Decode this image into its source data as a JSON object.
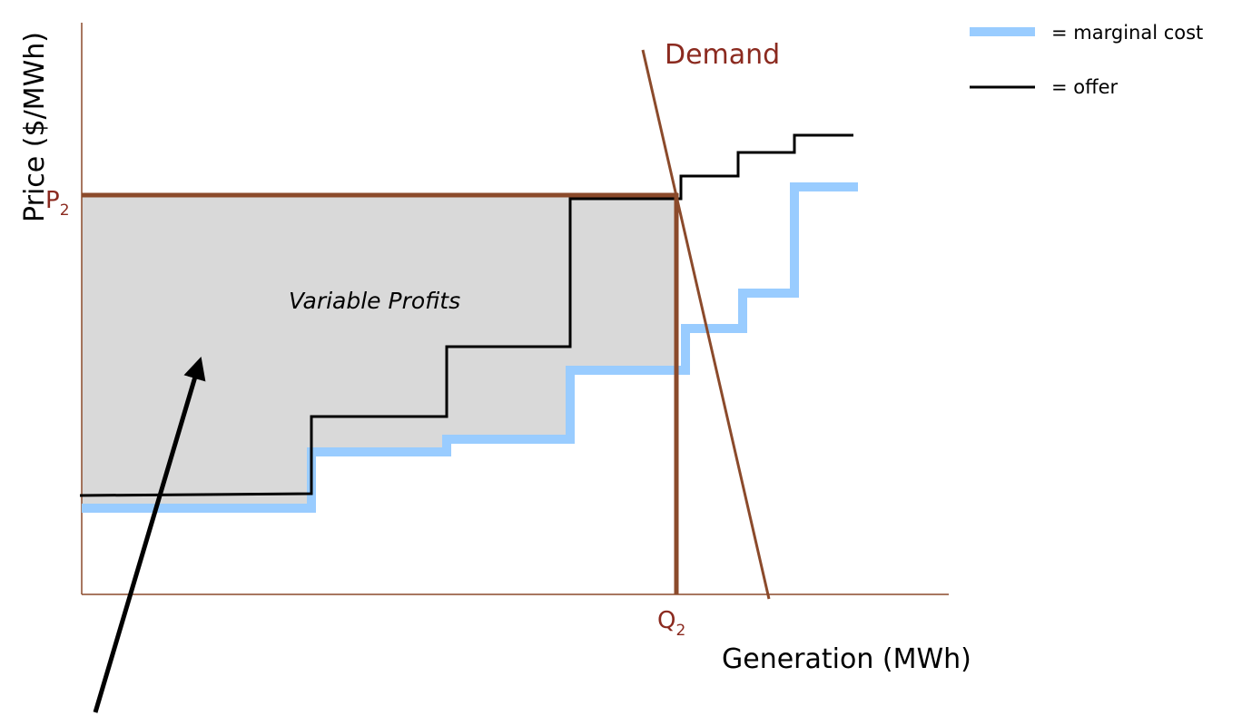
{
  "axes": {
    "y_label": "Price ($/MWh)",
    "x_label": "Generation (MWh)"
  },
  "labels": {
    "price": {
      "main": "P",
      "sub": "2"
    },
    "quantity": {
      "main": "Q",
      "sub": "2"
    },
    "demand": "Demand",
    "area": "Variable Profits"
  },
  "legend": {
    "marginal_cost": "= marginal cost",
    "offer": "= offer"
  }
}
